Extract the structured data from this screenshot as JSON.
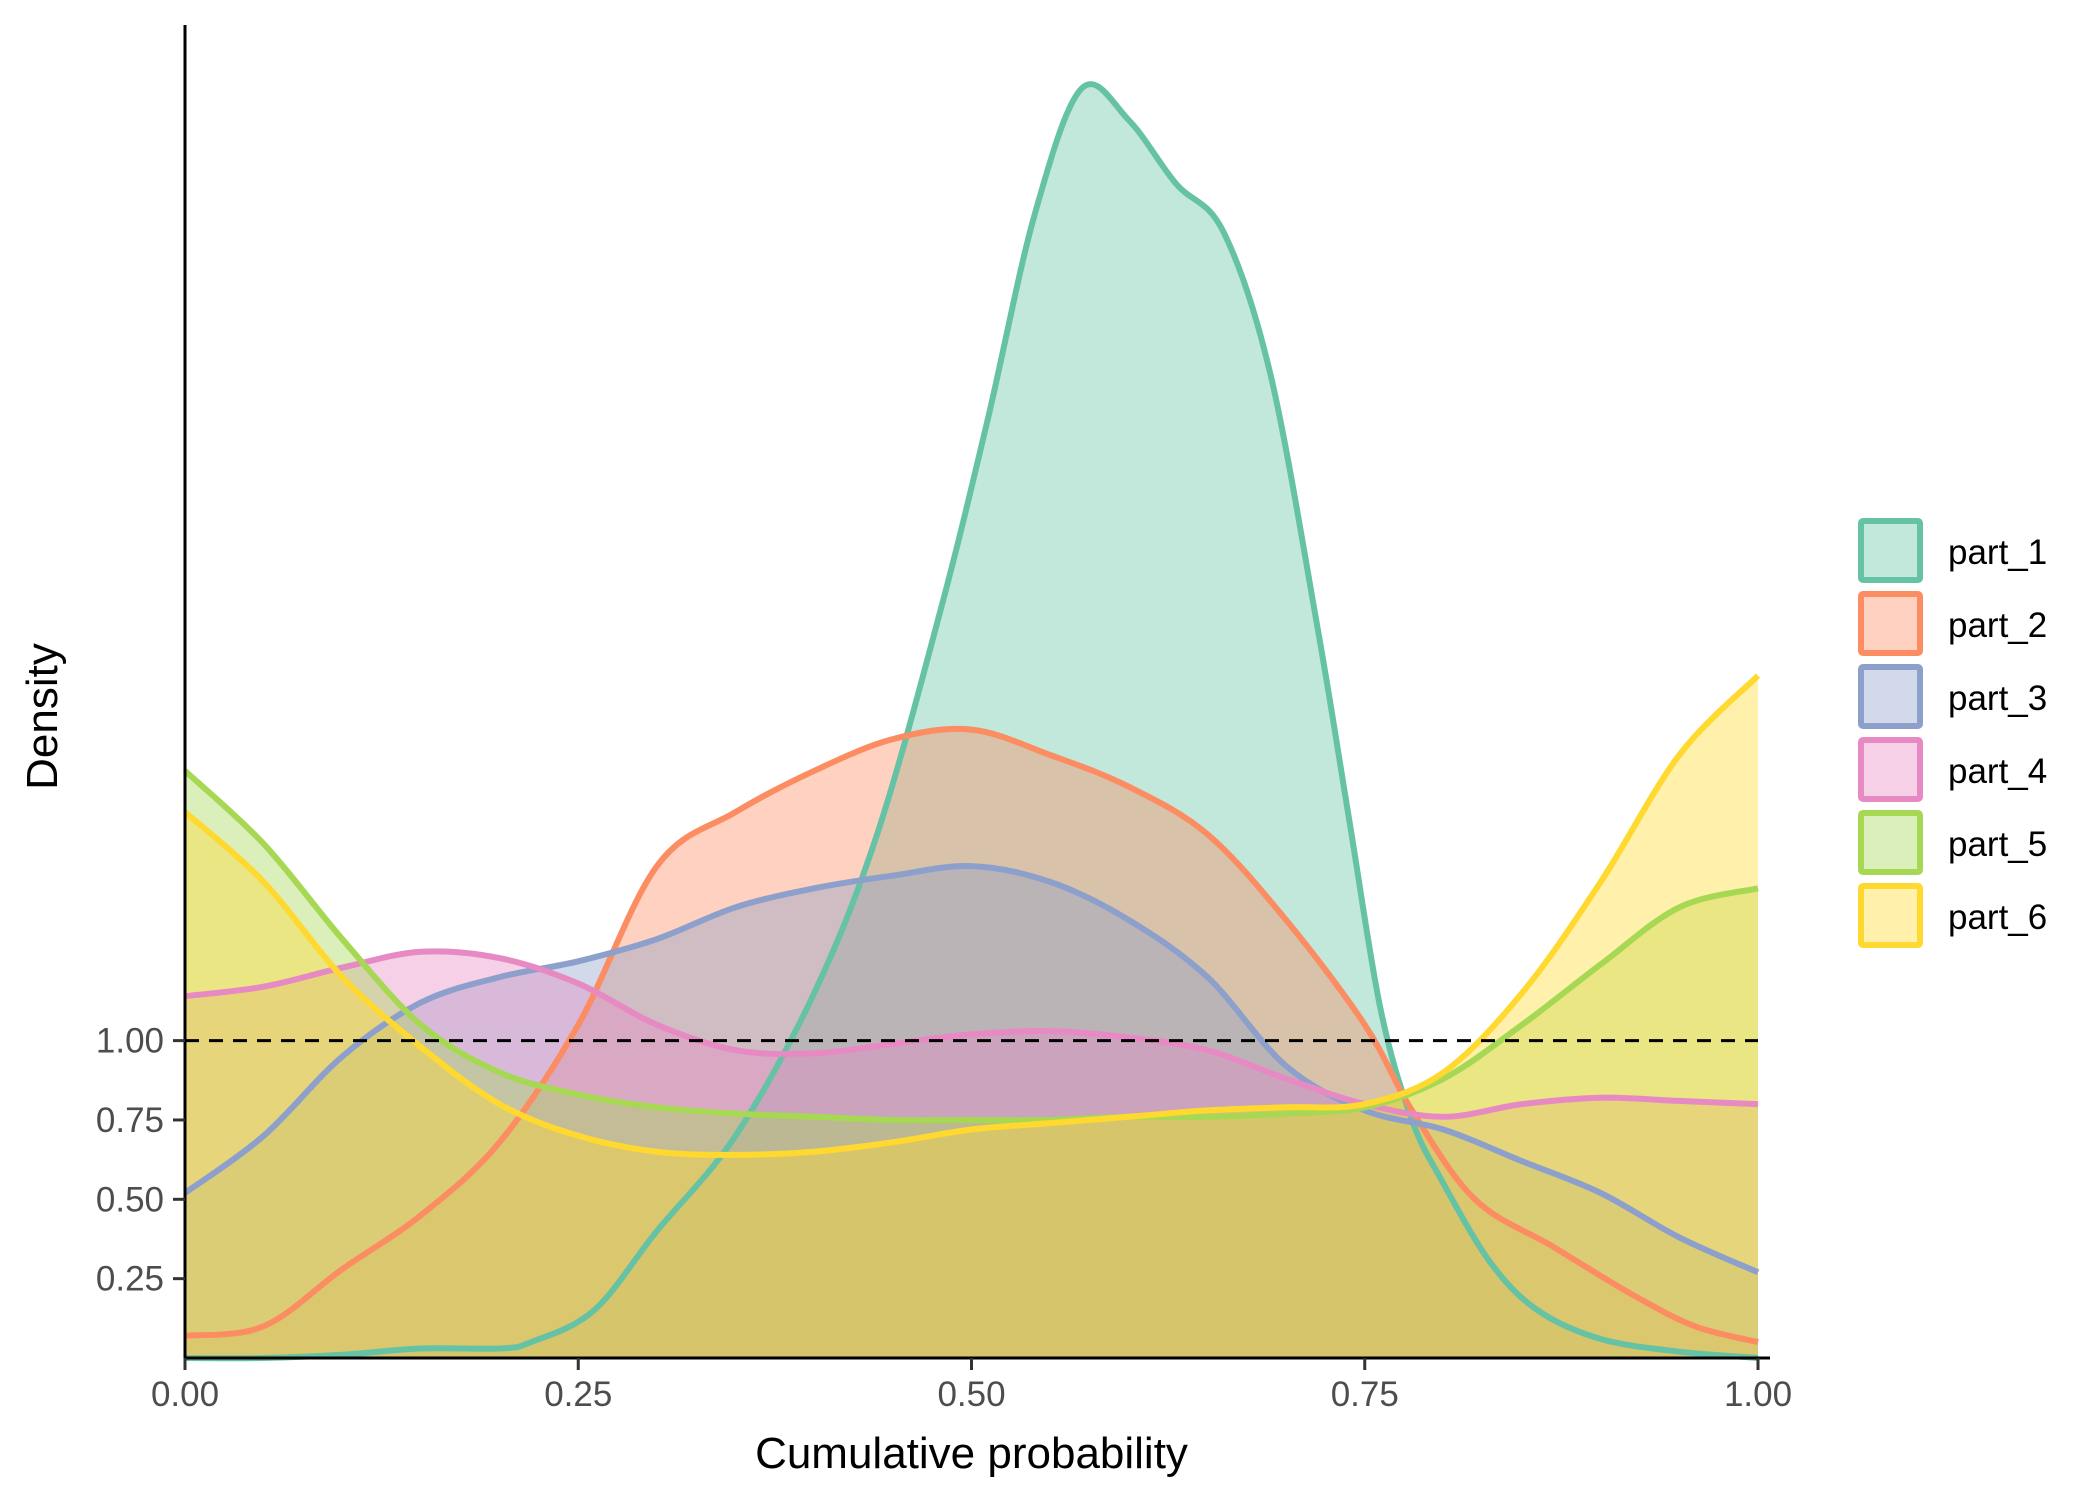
{
  "chart_data": {
    "type": "area",
    "xlabel": "Cumulative probability",
    "ylabel": "Density",
    "xlim": [
      0,
      1
    ],
    "ylim": [
      0,
      4.2
    ],
    "x_ticks": [
      "0.00",
      "0.25",
      "0.50",
      "0.75",
      "1.00"
    ],
    "y_ticks": [
      "0.25",
      "0.50",
      "0.75",
      "1.00"
    ],
    "reference_line": {
      "y": 1.0,
      "style": "dashed"
    },
    "legend_position": "right",
    "grid": false,
    "series": [
      {
        "name": "part_1",
        "color": "#66C2A5",
        "points": [
          [
            0,
            0
          ],
          [
            0.05,
            0
          ],
          [
            0.1,
            0.01
          ],
          [
            0.15,
            0.03
          ],
          [
            0.2,
            0.03
          ],
          [
            0.22,
            0.05
          ],
          [
            0.26,
            0.15
          ],
          [
            0.3,
            0.4
          ],
          [
            0.35,
            0.7
          ],
          [
            0.4,
            1.15
          ],
          [
            0.44,
            1.65
          ],
          [
            0.48,
            2.35
          ],
          [
            0.51,
            2.95
          ],
          [
            0.54,
            3.6
          ],
          [
            0.57,
            4.0
          ],
          [
            0.6,
            3.9
          ],
          [
            0.63,
            3.7
          ],
          [
            0.66,
            3.55
          ],
          [
            0.69,
            3.1
          ],
          [
            0.72,
            2.3
          ],
          [
            0.74,
            1.7
          ],
          [
            0.76,
            1.1
          ],
          [
            0.78,
            0.75
          ],
          [
            0.8,
            0.55
          ],
          [
            0.83,
            0.3
          ],
          [
            0.86,
            0.15
          ],
          [
            0.9,
            0.06
          ],
          [
            0.95,
            0.02
          ],
          [
            1.0,
            0.0
          ]
        ]
      },
      {
        "name": "part_2",
        "color": "#FC8D62",
        "points": [
          [
            0,
            0.07
          ],
          [
            0.05,
            0.1
          ],
          [
            0.1,
            0.28
          ],
          [
            0.15,
            0.45
          ],
          [
            0.2,
            0.68
          ],
          [
            0.25,
            1.05
          ],
          [
            0.3,
            1.55
          ],
          [
            0.35,
            1.72
          ],
          [
            0.4,
            1.85
          ],
          [
            0.45,
            1.95
          ],
          [
            0.5,
            1.98
          ],
          [
            0.55,
            1.9
          ],
          [
            0.6,
            1.8
          ],
          [
            0.65,
            1.65
          ],
          [
            0.7,
            1.38
          ],
          [
            0.75,
            1.05
          ],
          [
            0.78,
            0.78
          ],
          [
            0.82,
            0.5
          ],
          [
            0.87,
            0.35
          ],
          [
            0.92,
            0.2
          ],
          [
            0.96,
            0.1
          ],
          [
            1.0,
            0.05
          ]
        ]
      },
      {
        "name": "part_3",
        "color": "#8DA0CB",
        "points": [
          [
            0,
            0.52
          ],
          [
            0.05,
            0.7
          ],
          [
            0.1,
            0.95
          ],
          [
            0.15,
            1.12
          ],
          [
            0.2,
            1.2
          ],
          [
            0.25,
            1.25
          ],
          [
            0.3,
            1.32
          ],
          [
            0.35,
            1.42
          ],
          [
            0.4,
            1.48
          ],
          [
            0.45,
            1.52
          ],
          [
            0.5,
            1.55
          ],
          [
            0.55,
            1.5
          ],
          [
            0.6,
            1.38
          ],
          [
            0.65,
            1.2
          ],
          [
            0.7,
            0.92
          ],
          [
            0.75,
            0.78
          ],
          [
            0.8,
            0.72
          ],
          [
            0.85,
            0.62
          ],
          [
            0.9,
            0.52
          ],
          [
            0.95,
            0.38
          ],
          [
            1.0,
            0.27
          ]
        ]
      },
      {
        "name": "part_4",
        "color": "#E78AC3",
        "points": [
          [
            0,
            1.14
          ],
          [
            0.05,
            1.17
          ],
          [
            0.1,
            1.23
          ],
          [
            0.15,
            1.28
          ],
          [
            0.2,
            1.26
          ],
          [
            0.25,
            1.18
          ],
          [
            0.3,
            1.05
          ],
          [
            0.35,
            0.97
          ],
          [
            0.4,
            0.96
          ],
          [
            0.45,
            0.99
          ],
          [
            0.5,
            1.02
          ],
          [
            0.55,
            1.03
          ],
          [
            0.6,
            1.01
          ],
          [
            0.65,
            0.97
          ],
          [
            0.7,
            0.88
          ],
          [
            0.75,
            0.8
          ],
          [
            0.8,
            0.76
          ],
          [
            0.85,
            0.8
          ],
          [
            0.9,
            0.82
          ],
          [
            0.95,
            0.81
          ],
          [
            1.0,
            0.8
          ]
        ]
      },
      {
        "name": "part_5",
        "color": "#A6D854",
        "points": [
          [
            0,
            1.85
          ],
          [
            0.05,
            1.62
          ],
          [
            0.1,
            1.32
          ],
          [
            0.15,
            1.05
          ],
          [
            0.2,
            0.9
          ],
          [
            0.25,
            0.83
          ],
          [
            0.3,
            0.79
          ],
          [
            0.35,
            0.77
          ],
          [
            0.4,
            0.76
          ],
          [
            0.45,
            0.75
          ],
          [
            0.5,
            0.75
          ],
          [
            0.55,
            0.75
          ],
          [
            0.6,
            0.76
          ],
          [
            0.65,
            0.76
          ],
          [
            0.7,
            0.77
          ],
          [
            0.75,
            0.79
          ],
          [
            0.8,
            0.88
          ],
          [
            0.85,
            1.05
          ],
          [
            0.9,
            1.24
          ],
          [
            0.95,
            1.42
          ],
          [
            1.0,
            1.48
          ]
        ]
      },
      {
        "name": "part_6",
        "color": "#FFD92F",
        "points": [
          [
            0,
            1.72
          ],
          [
            0.05,
            1.5
          ],
          [
            0.1,
            1.2
          ],
          [
            0.15,
            0.98
          ],
          [
            0.2,
            0.8
          ],
          [
            0.25,
            0.7
          ],
          [
            0.3,
            0.65
          ],
          [
            0.35,
            0.64
          ],
          [
            0.4,
            0.65
          ],
          [
            0.45,
            0.68
          ],
          [
            0.5,
            0.72
          ],
          [
            0.55,
            0.74
          ],
          [
            0.6,
            0.76
          ],
          [
            0.65,
            0.78
          ],
          [
            0.7,
            0.79
          ],
          [
            0.75,
            0.8
          ],
          [
            0.8,
            0.9
          ],
          [
            0.85,
            1.15
          ],
          [
            0.9,
            1.5
          ],
          [
            0.95,
            1.9
          ],
          [
            1.0,
            2.15
          ]
        ]
      }
    ]
  }
}
